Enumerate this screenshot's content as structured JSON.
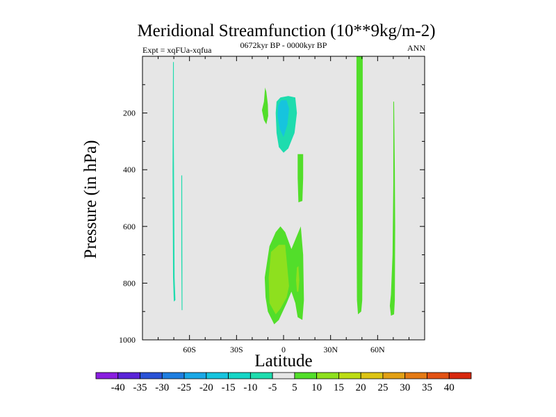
{
  "chart_data": {
    "type": "contour",
    "title": "Meridional Streamfunction (10**9kg/m-2)",
    "left_label": "Expt = xqFUa-xqfua",
    "center_label": "0672kyr BP - 0000kyr BP",
    "right_label": "ANN",
    "xlabel": "Latitude",
    "ylabel": "Pressure (in hPa)",
    "xlim": [
      -90,
      90
    ],
    "ylim": [
      0,
      1000
    ],
    "x_ticks": [
      {
        "value": -60,
        "label": "60S"
      },
      {
        "value": -30,
        "label": "30S"
      },
      {
        "value": 0,
        "label": "0"
      },
      {
        "value": 30,
        "label": "30N"
      },
      {
        "value": 60,
        "label": "60N"
      }
    ],
    "y_ticks": [
      {
        "value": 200,
        "label": "200"
      },
      {
        "value": 400,
        "label": "400"
      },
      {
        "value": 600,
        "label": "600"
      },
      {
        "value": 800,
        "label": "800"
      },
      {
        "value": 1000,
        "label": "1000"
      }
    ],
    "colorbar": {
      "labels": [
        "-40",
        "-35",
        "-30",
        "-25",
        "-20",
        "-15",
        "-10",
        "-5",
        "5",
        "10",
        "15",
        "20",
        "25",
        "30",
        "35",
        "40"
      ],
      "colors": [
        "#8a1ee0",
        "#5a24d8",
        "#2a52d6",
        "#1e7ee0",
        "#1aa8e6",
        "#16c4de",
        "#16d6c6",
        "#1edcae",
        "#e6e6e6",
        "#52de2a",
        "#8ee01e",
        "#bcdc14",
        "#dcc414",
        "#e2a014",
        "#e47a14",
        "#e25214",
        "#d8280e"
      ]
    },
    "regions": [
      {
        "name": "negative-region-sh-68s",
        "level": "-5 to -10",
        "color": "#1edcae",
        "polygon": [
          [
            -70.5,
            20
          ],
          [
            -70,
            20
          ],
          [
            -70,
            300
          ],
          [
            -69.5,
            780
          ],
          [
            -69,
            860
          ],
          [
            -70,
            865
          ],
          [
            -70.5,
            780
          ],
          [
            -70.8,
            400
          ]
        ]
      },
      {
        "name": "negative-region-sh-64s",
        "level": "-5 to -10",
        "color": "#1edcae",
        "polygon": [
          [
            -65.2,
            420
          ],
          [
            -64.7,
            420
          ],
          [
            -64.6,
            700
          ],
          [
            -64.5,
            895
          ],
          [
            -65,
            895
          ],
          [
            -65.2,
            700
          ]
        ]
      },
      {
        "name": "negative-region-equator-outer",
        "level": "-5 to -10",
        "color": "#1edcae",
        "polygon": [
          [
            -4.5,
            160
          ],
          [
            -2,
            145
          ],
          [
            3,
            140
          ],
          [
            7.5,
            145
          ],
          [
            8.5,
            200
          ],
          [
            7,
            270
          ],
          [
            3,
            325
          ],
          [
            0,
            340
          ],
          [
            -3,
            320
          ],
          [
            -4.5,
            270
          ],
          [
            -5,
            200
          ]
        ]
      },
      {
        "name": "negative-region-equator-core",
        "level": "-10 to -15",
        "color": "#16c4de",
        "polygon": [
          [
            -3.5,
            175
          ],
          [
            -1.5,
            155
          ],
          [
            2,
            155
          ],
          [
            3.5,
            185
          ],
          [
            2.5,
            240
          ],
          [
            0,
            285
          ],
          [
            -2.5,
            255
          ],
          [
            -3.8,
            210
          ]
        ]
      },
      {
        "name": "positive-region-12s",
        "level": "5 to 10",
        "color": "#52de2a",
        "polygon": [
          [
            -11.8,
            110
          ],
          [
            -11,
            125
          ],
          [
            -10,
            170
          ],
          [
            -9.8,
            210
          ],
          [
            -11,
            240
          ],
          [
            -12.5,
            225
          ],
          [
            -13.8,
            190
          ],
          [
            -12.5,
            160
          ]
        ]
      },
      {
        "name": "positive-region-10n-upper",
        "level": "5 to 10",
        "color": "#52de2a",
        "polygon": [
          [
            9,
            345
          ],
          [
            12.5,
            345
          ],
          [
            12.5,
            430
          ],
          [
            12,
            510
          ],
          [
            9.5,
            515
          ],
          [
            9,
            430
          ]
        ]
      },
      {
        "name": "positive-region-lower-main",
        "level": "5 to 10",
        "color": "#52de2a",
        "polygon": [
          [
            -12,
            780
          ],
          [
            -9,
            670
          ],
          [
            -5,
            620
          ],
          [
            -2,
            600
          ],
          [
            1,
            620
          ],
          [
            5,
            680
          ],
          [
            8,
            640
          ],
          [
            11,
            600
          ],
          [
            12.5,
            700
          ],
          [
            13,
            860
          ],
          [
            12,
            930
          ],
          [
            9,
            920
          ],
          [
            7.5,
            870
          ],
          [
            5,
            830
          ],
          [
            2,
            870
          ],
          [
            -3,
            930
          ],
          [
            -6,
            945
          ],
          [
            -10,
            900
          ],
          [
            -11.5,
            850
          ]
        ]
      },
      {
        "name": "positive-region-lower-core",
        "level": "10 to 15",
        "color": "#8ee01e",
        "polygon": [
          [
            -8,
            690
          ],
          [
            -3,
            665
          ],
          [
            1,
            665
          ],
          [
            2,
            720
          ],
          [
            3.5,
            810
          ],
          [
            2,
            850
          ],
          [
            -2,
            890
          ],
          [
            -5,
            910
          ],
          [
            -9,
            870
          ],
          [
            -9.5,
            780
          ]
        ]
      },
      {
        "name": "positive-region-lower-side",
        "level": "10 to 15",
        "color": "#8ee01e",
        "polygon": [
          [
            8.5,
            745
          ],
          [
            9.5,
            740
          ],
          [
            10,
            790
          ],
          [
            9.5,
            830
          ],
          [
            8.5,
            830
          ],
          [
            8,
            790
          ]
        ]
      },
      {
        "name": "positive-region-47n",
        "level": "5 to 10",
        "color": "#52de2a",
        "polygon": [
          [
            46.5,
            -20
          ],
          [
            50.5,
            -20
          ],
          [
            50.5,
            600
          ],
          [
            50.2,
            860
          ],
          [
            49.5,
            900
          ],
          [
            47.5,
            910
          ],
          [
            46.8,
            860
          ],
          [
            46.5,
            500
          ]
        ]
      },
      {
        "name": "positive-region-70n",
        "level": "5 to 10",
        "color": "#52de2a",
        "polygon": [
          [
            70,
            160
          ],
          [
            70.5,
            160
          ],
          [
            71,
            400
          ],
          [
            71.2,
            600
          ],
          [
            71,
            860
          ],
          [
            70.5,
            910
          ],
          [
            68.5,
            915
          ],
          [
            67.8,
            880
          ],
          [
            68.5,
            840
          ],
          [
            69.5,
            700
          ],
          [
            70,
            450
          ]
        ]
      }
    ]
  }
}
